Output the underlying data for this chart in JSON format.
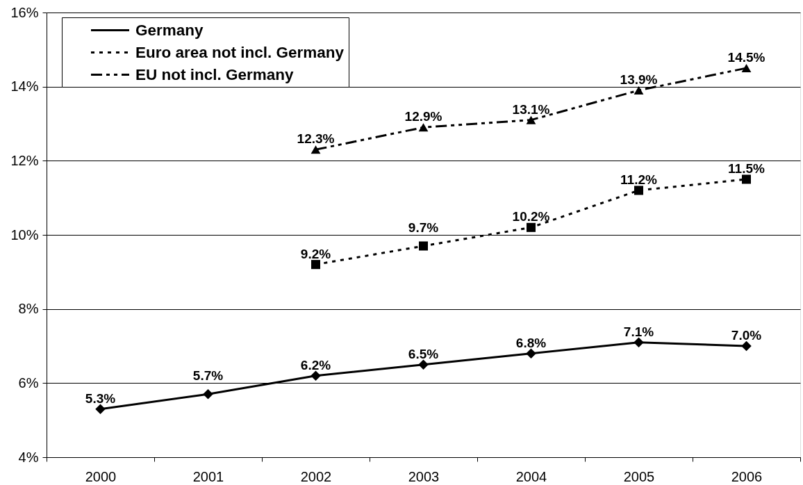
{
  "chart_data": {
    "type": "line",
    "categories": [
      "2000",
      "2001",
      "2002",
      "2003",
      "2004",
      "2005",
      "2006"
    ],
    "ylim": [
      4,
      16
    ],
    "yticks": [
      {
        "value": 4,
        "label": "4%"
      },
      {
        "value": 6,
        "label": "6%"
      },
      {
        "value": 8,
        "label": "8%"
      },
      {
        "value": 10,
        "label": "10%"
      },
      {
        "value": 12,
        "label": "12%"
      },
      {
        "value": 14,
        "label": "14%"
      },
      {
        "value": 16,
        "label": "16%"
      }
    ],
    "grid": "y",
    "legend": "top left",
    "series": [
      {
        "name": "Germany",
        "color": "#000000",
        "marker": "diamond",
        "line_style": "solid",
        "values": [
          5.3,
          5.7,
          6.2,
          6.5,
          6.8,
          7.1,
          7.0
        ],
        "value_labels": [
          "5.3%",
          "5.7%",
          "6.2%",
          "6.5%",
          "6.8%",
          "7.1%",
          "7.0%"
        ]
      },
      {
        "name": "Euro area not incl. Germany",
        "color": "#000000",
        "marker": "square",
        "line_style": "dotted",
        "values": [
          null,
          null,
          9.2,
          9.7,
          10.2,
          11.2,
          11.5
        ],
        "value_labels": [
          null,
          null,
          "9.2%",
          "9.7%",
          "10.2%",
          "11.2%",
          "11.5%"
        ]
      },
      {
        "name": "EU not incl. Germany",
        "color": "#000000",
        "marker": "triangle",
        "line_style": "dashed",
        "values": [
          null,
          null,
          12.3,
          12.9,
          13.1,
          13.9,
          14.5
        ],
        "value_labels": [
          null,
          null,
          "12.3%",
          "12.9%",
          "13.1%",
          "13.9%",
          "14.5%"
        ]
      }
    ]
  }
}
